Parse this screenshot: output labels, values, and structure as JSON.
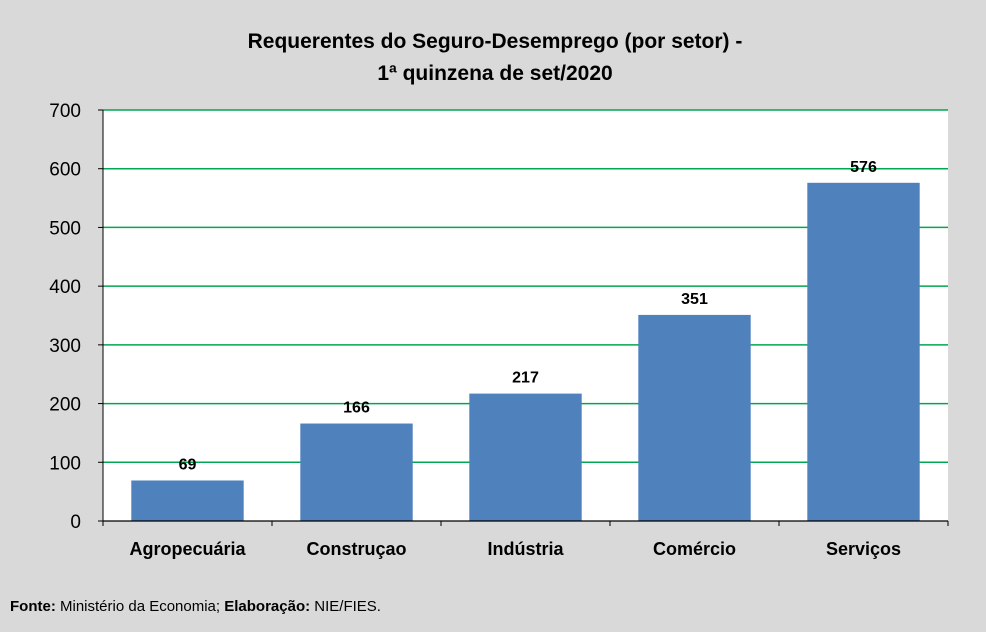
{
  "chart_data": {
    "type": "bar",
    "title_lines": [
      "Requerentes do Seguro-Desemprego (por setor) -",
      "1ª quinzena de set/2020"
    ],
    "categories": [
      "Agropecuária",
      "Construçao",
      "Indústria",
      "Comércio",
      "Serviços"
    ],
    "values": [
      69,
      166,
      217,
      351,
      576
    ],
    "data_labels": [
      "69",
      "166",
      "217",
      "351",
      "576"
    ],
    "ylim": [
      0,
      700
    ],
    "yticks": [
      0,
      100,
      200,
      300,
      400,
      500,
      600,
      700
    ],
    "ytick_labels": [
      "0",
      "100",
      "200",
      "300",
      "400",
      "500",
      "600",
      "700"
    ],
    "grid": true,
    "legend": "none",
    "colors": {
      "bar": "#4f81bd",
      "grid": "#00a651",
      "plot_background": "#ffffff",
      "background": "#d9d9d9"
    }
  },
  "source_note": {
    "label1": "Fonte:",
    "text1": " Ministério da Economia; ",
    "label2": "Elaboração:",
    "text2": " NIE/FIES."
  }
}
